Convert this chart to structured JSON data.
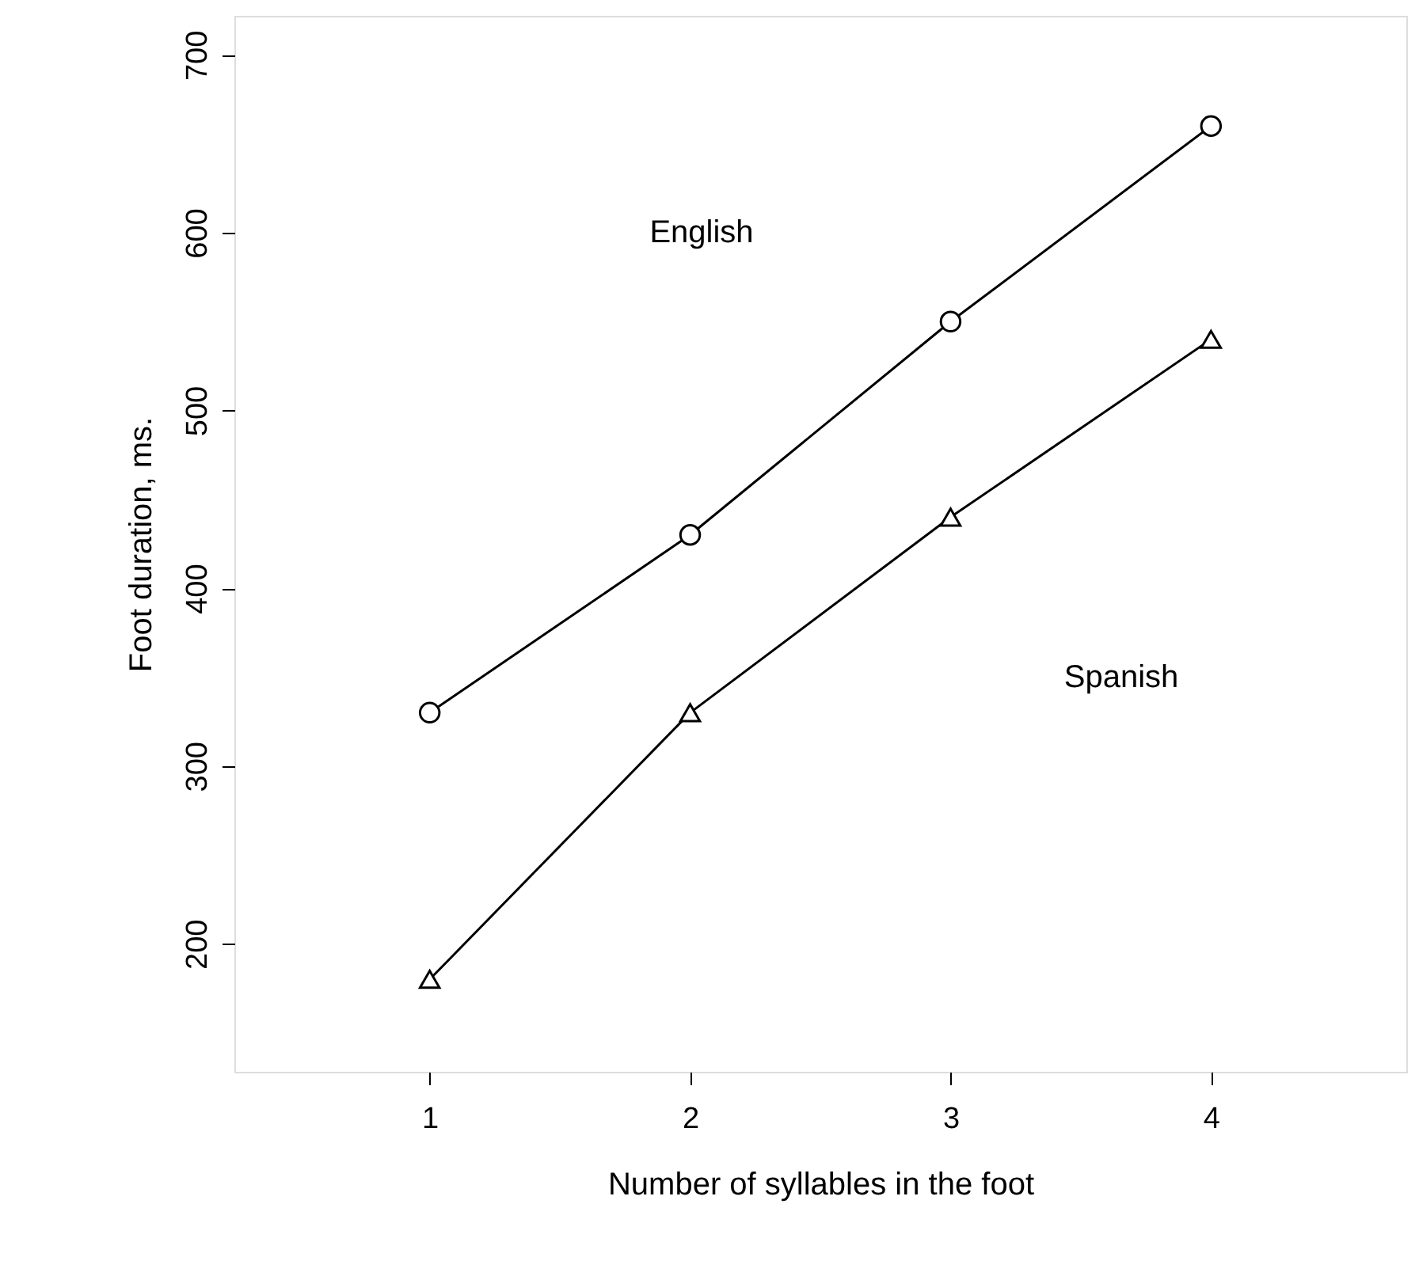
{
  "chart_data": {
    "type": "line",
    "xlabel": "Number of syllables in the foot",
    "ylabel": "Foot duration, ms.",
    "x": [
      1,
      2,
      3,
      4
    ],
    "series": [
      {
        "color": "#000000",
        "values": [
          330,
          430,
          550,
          660
        ],
        "marker": "circle"
      },
      {
        "color": "#000000",
        "values": [
          180,
          330,
          440,
          540
        ],
        "marker": "triangle"
      }
    ],
    "xlim": [
      0.25,
      4.75
    ],
    "xticks": [
      1,
      2,
      3,
      4
    ],
    "ylim": [
      128,
      722
    ],
    "yticks": [
      200,
      300,
      400,
      500,
      600,
      700
    ],
    "grid": false,
    "line_style": "solid",
    "annotations": [
      "English",
      "Spanish"
    ]
  }
}
